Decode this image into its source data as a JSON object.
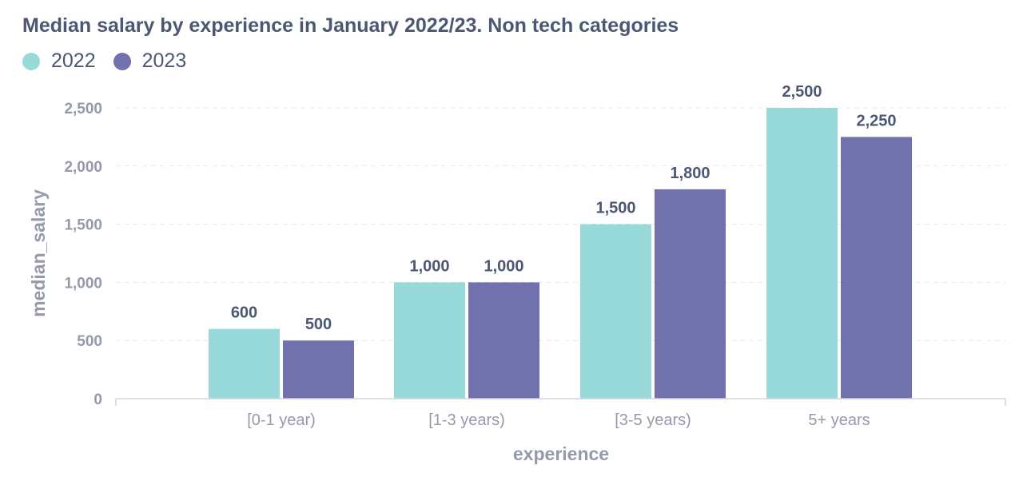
{
  "title": "Median salary by experience in January 2022/23. Non tech categories",
  "chart_data": {
    "type": "bar",
    "title": "Median salary by experience in January 2022/23. Non tech categories",
    "xlabel": "experience",
    "ylabel": "median_salary",
    "categories": [
      "[0-1 year)",
      "[1-3 years)",
      "[3-5 years)",
      "5+ years"
    ],
    "series": [
      {
        "name": "2022",
        "color": "#98d9d9",
        "values": [
          600,
          1000,
          1500,
          2500
        ],
        "labels": [
          "600",
          "1,000",
          "1,500",
          "2,500"
        ]
      },
      {
        "name": "2023",
        "color": "#7172ad",
        "values": [
          500,
          1000,
          1800,
          2250
        ],
        "labels": [
          "500",
          "1,000",
          "1,800",
          "2,250"
        ]
      }
    ],
    "yticks": [
      0,
      500,
      1000,
      1500,
      2000,
      2500
    ],
    "ytick_labels": [
      "0",
      "500",
      "1,000",
      "1,500",
      "2,000",
      "2,500"
    ],
    "ylim": [
      0,
      2500
    ],
    "grid": true,
    "legend_position": "top-left"
  }
}
